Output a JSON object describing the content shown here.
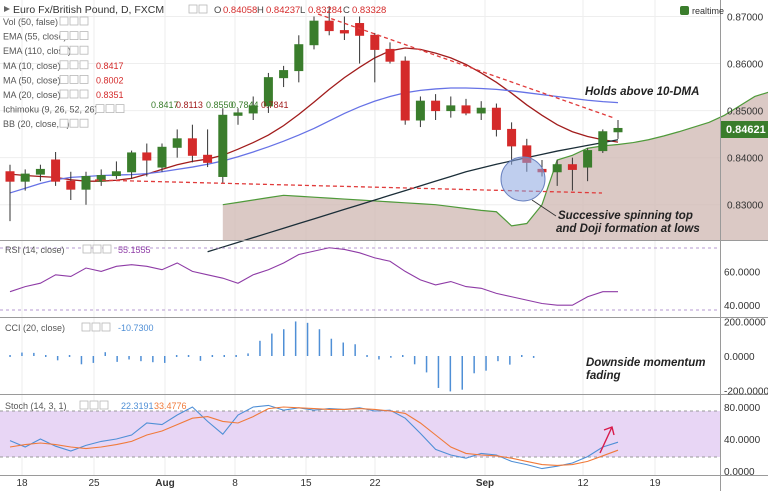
{
  "title": "Euro Fx/British Pound, D, FXCM",
  "ohlc": {
    "o_label": "O",
    "o": "0.84058",
    "h_label": "H",
    "h": "0.84237",
    "l_label": "L",
    "l": "0.83284",
    "c_label": "C",
    "c": "0.83328"
  },
  "realtime_label": "realtime",
  "indicators": [
    {
      "label": "Vol (50, false)",
      "value": ""
    },
    {
      "label": "EMA (55, close)",
      "value": ""
    },
    {
      "label": "EMA (110, close)",
      "value": ""
    },
    {
      "label": "MA (10, close)",
      "value": "0.8417"
    },
    {
      "label": "MA (50, close)",
      "value": "0.8002"
    },
    {
      "label": "MA (20, close)",
      "value": "0.8351"
    },
    {
      "label": "Ichimoku (9, 26, 52, 26)",
      "value": ""
    },
    {
      "label": "BB (20, close, 2)",
      "value": ""
    }
  ],
  "ichimoku_values": [
    "0.8417",
    "0.8113",
    "0.8550",
    "0.7844",
    "0.7841"
  ],
  "rsi_panel": {
    "label": "RSI (14, close)",
    "value": "55.1555"
  },
  "cci_panel": {
    "label": "CCI (20, close)",
    "value": "-10.7300"
  },
  "stoch_panel": {
    "label": "Stoch (14, 3, 1)",
    "value_k": "22.3191",
    "value_d": "33.4776"
  },
  "price_badge": "0.84621",
  "annotations": {
    "holds": "Holds above 10-DMA",
    "spinning_1": "Successive spinning top",
    "spinning_2": "and Doji formation at lows",
    "momentum_1": "Downside momentum",
    "momentum_2": "fading"
  },
  "colors": {
    "up": "#3a7d2c",
    "down": "#d42a2a",
    "ma10": "#a11c1c",
    "ma20": "#6672e6",
    "ma50": "#1b2e38",
    "cloud": "#cfb7b2",
    "rsi": "#8e3ba6",
    "cci": "#4f8fd6",
    "stoch_k": "#4f8fd6",
    "stoch_d": "#f07a3a"
  },
  "chart_data": [
    {
      "type": "candlestick",
      "name": "main",
      "x_ticks": [
        "18",
        "25",
        "Aug",
        "8",
        "15",
        "22",
        "Sep",
        "12",
        "19"
      ],
      "y_ticks": [
        "0.87000",
        "0.86000",
        "0.85000",
        "0.84000",
        "0.83000"
      ],
      "ylim": [
        0.8225,
        0.8735
      ],
      "candles": [
        [
          0.837,
          0.8385,
          0.8265,
          0.835
        ],
        [
          0.835,
          0.8375,
          0.833,
          0.8365
        ],
        [
          0.8365,
          0.8385,
          0.835,
          0.8375
        ],
        [
          0.8395,
          0.8412,
          0.834,
          0.835
        ],
        [
          0.835,
          0.837,
          0.831,
          0.8333
        ],
        [
          0.8333,
          0.837,
          0.83,
          0.836
        ],
        [
          0.835,
          0.8375,
          0.834,
          0.8362
        ],
        [
          0.8362,
          0.8392,
          0.8355,
          0.837
        ],
        [
          0.837,
          0.8415,
          0.8355,
          0.841
        ],
        [
          0.841,
          0.843,
          0.836,
          0.8395
        ],
        [
          0.838,
          0.843,
          0.837,
          0.8422
        ],
        [
          0.8422,
          0.846,
          0.84,
          0.844
        ],
        [
          0.844,
          0.847,
          0.839,
          0.8405
        ],
        [
          0.8405,
          0.846,
          0.838,
          0.839
        ],
        [
          0.836,
          0.8505,
          0.8345,
          0.849
        ],
        [
          0.849,
          0.8505,
          0.847,
          0.8495
        ],
        [
          0.8495,
          0.853,
          0.848,
          0.851
        ],
        [
          0.851,
          0.858,
          0.8495,
          0.857
        ],
        [
          0.857,
          0.8595,
          0.855,
          0.8585
        ],
        [
          0.8585,
          0.866,
          0.856,
          0.864
        ],
        [
          0.864,
          0.87,
          0.863,
          0.869
        ],
        [
          0.869,
          0.8722,
          0.866,
          0.867
        ],
        [
          0.867,
          0.87,
          0.865,
          0.8665
        ],
        [
          0.8685,
          0.87,
          0.86,
          0.866
        ],
        [
          0.866,
          0.8665,
          0.856,
          0.863
        ],
        [
          0.863,
          0.8645,
          0.86,
          0.8605
        ],
        [
          0.8605,
          0.8615,
          0.847,
          0.848
        ],
        [
          0.848,
          0.853,
          0.8465,
          0.852
        ],
        [
          0.852,
          0.8535,
          0.848,
          0.85
        ],
        [
          0.85,
          0.853,
          0.8485,
          0.851
        ],
        [
          0.851,
          0.8525,
          0.849,
          0.8495
        ],
        [
          0.8495,
          0.852,
          0.848,
          0.8505
        ],
        [
          0.8505,
          0.8515,
          0.8445,
          0.846
        ],
        [
          0.846,
          0.8475,
          0.8385,
          0.8425
        ],
        [
          0.8425,
          0.844,
          0.837,
          0.839
        ],
        [
          0.8375,
          0.8395,
          0.836,
          0.837
        ],
        [
          0.837,
          0.8395,
          0.834,
          0.8385
        ],
        [
          0.8385,
          0.84,
          0.833,
          0.8375
        ],
        [
          0.838,
          0.842,
          0.835,
          0.8415
        ],
        [
          0.8415,
          0.846,
          0.841,
          0.8455
        ],
        [
          0.8455,
          0.848,
          0.844,
          0.8462
        ]
      ],
      "series": [
        {
          "name": "MA (10, close)",
          "values": [
            0.8365,
            0.8362,
            0.836,
            0.8358,
            0.8353,
            0.835,
            0.835,
            0.8352,
            0.8356,
            0.8365,
            0.8375,
            0.8385,
            0.8392,
            0.8397,
            0.8405,
            0.8418,
            0.8432,
            0.8448,
            0.8468,
            0.8492,
            0.8518,
            0.8545,
            0.857,
            0.8592,
            0.8612,
            0.8627,
            0.8633,
            0.863,
            0.8622,
            0.8612,
            0.8598,
            0.858,
            0.856,
            0.8537,
            0.8512,
            0.849,
            0.847,
            0.8455,
            0.8445,
            0.8438,
            0.8433
          ]
        },
        {
          "name": "MA (20, close)",
          "values": [
            0.8325,
            0.8335,
            0.8345,
            0.8353,
            0.8358,
            0.836,
            0.8362,
            0.8363,
            0.8364,
            0.8366,
            0.837,
            0.8375,
            0.838,
            0.8386,
            0.8393,
            0.8402,
            0.8412,
            0.8423,
            0.8435,
            0.8448,
            0.8462,
            0.8478,
            0.8494,
            0.8508,
            0.852,
            0.853,
            0.8538,
            0.8543,
            0.8546,
            0.8548,
            0.8548,
            0.8547,
            0.8545,
            0.8542,
            0.8538,
            0.8534,
            0.853,
            0.8526,
            0.8522,
            0.8519,
            0.8517
          ]
        },
        {
          "name": "MA (50, close)",
          "start": 13,
          "values": [
            0.82,
            0.821,
            0.822,
            0.823,
            0.824,
            0.825,
            0.826,
            0.827,
            0.828,
            0.829,
            0.83,
            0.831,
            0.832,
            0.833,
            0.834,
            0.835,
            0.836,
            0.837,
            0.8378,
            0.8386,
            0.8393,
            0.84,
            0.8407,
            0.8414,
            0.842,
            0.8426,
            0.8432,
            0.8438
          ]
        },
        {
          "name": "Cloud upper",
          "start": 14,
          "values": [
            0.83,
            0.8305,
            0.831,
            0.8315,
            0.832,
            0.8318,
            0.8316,
            0.8314,
            0.8312,
            0.831,
            0.8308,
            0.8306,
            0.8304,
            0.8302,
            0.83,
            0.8296,
            0.8292,
            0.8288,
            0.8285,
            0.8255,
            0.826,
            0.83,
            0.8395,
            0.8405,
            0.842,
            0.8425,
            0.8428,
            0.8432,
            0.8438,
            0.8446,
            0.8455,
            0.8465,
            0.8475,
            0.849,
            0.851,
            0.853,
            0.854,
            0.8545
          ]
        },
        {
          "name": "Cloud lower",
          "start": 14,
          "values": [
            0.8225,
            0.8225,
            0.8225,
            0.8225,
            0.8225,
            0.8225,
            0.8225,
            0.8225,
            0.8225,
            0.8225,
            0.8225,
            0.8225,
            0.8225,
            0.8225,
            0.8225,
            0.8225,
            0.8225,
            0.8225,
            0.8225,
            0.8225,
            0.8225,
            0.8225,
            0.8225,
            0.8225,
            0.8225,
            0.8225,
            0.8225,
            0.8225,
            0.8225,
            0.8225,
            0.8225,
            0.8225,
            0.8225,
            0.8225,
            0.8225,
            0.8225,
            0.8225,
            0.8225
          ]
        }
      ]
    },
    {
      "type": "line",
      "name": "RSI (14, close)",
      "ylim": [
        33,
        78
      ],
      "y_ticks": [
        "60.0000",
        "40.0000"
      ],
      "values": [
        48,
        51,
        53,
        58,
        57,
        62,
        60,
        63,
        64,
        63,
        61,
        65,
        60,
        58,
        56,
        53,
        58,
        61,
        65,
        70,
        72,
        74,
        73,
        71,
        68,
        66,
        60,
        55,
        52,
        54,
        51,
        50,
        47,
        45,
        43,
        41,
        40,
        40,
        45,
        48,
        48
      ]
    },
    {
      "type": "bar",
      "name": "CCI (20, close)",
      "ylim": [
        -220,
        220
      ],
      "y_ticks": [
        "200.0000",
        "0.0000",
        "-200.0000"
      ],
      "values": [
        0,
        20,
        18,
        0,
        -25,
        0,
        -48,
        -40,
        22,
        -34,
        -20,
        -30,
        -36,
        -40,
        0,
        0,
        -28,
        0,
        0,
        0,
        15,
        88,
        130,
        155,
        200,
        192,
        155,
        100,
        78,
        68,
        0,
        -20,
        -10,
        0,
        -48,
        -95,
        -185,
        -205,
        -195,
        -100,
        -85,
        -30,
        -50,
        0,
        -11
      ]
    },
    {
      "type": "line",
      "name": "Stoch (14, 3, 1)",
      "ylim": [
        -5,
        95
      ],
      "y_ticks": [
        "80.0000",
        "40.0000",
        "0.0000"
      ],
      "series": [
        {
          "name": "%K",
          "values": [
            38,
            30,
            40,
            31,
            25,
            32,
            37,
            40,
            45,
            60,
            58,
            70,
            80,
            62,
            46,
            70,
            80,
            82,
            76,
            79,
            76,
            78,
            77,
            79,
            75,
            76,
            66,
            47,
            27,
            20,
            16,
            22,
            20,
            12,
            8,
            3,
            6,
            10,
            18,
            30,
            36
          ]
        },
        {
          "name": "%D",
          "values": [
            30,
            33,
            35,
            33,
            30,
            28,
            30,
            33,
            37,
            45,
            50,
            58,
            66,
            68,
            62,
            60,
            68,
            78,
            80,
            79,
            78,
            77,
            77,
            78,
            77,
            75,
            72,
            60,
            45,
            30,
            22,
            20,
            19,
            16,
            12,
            8,
            7,
            8,
            12,
            19,
            26
          ]
        }
      ]
    }
  ]
}
